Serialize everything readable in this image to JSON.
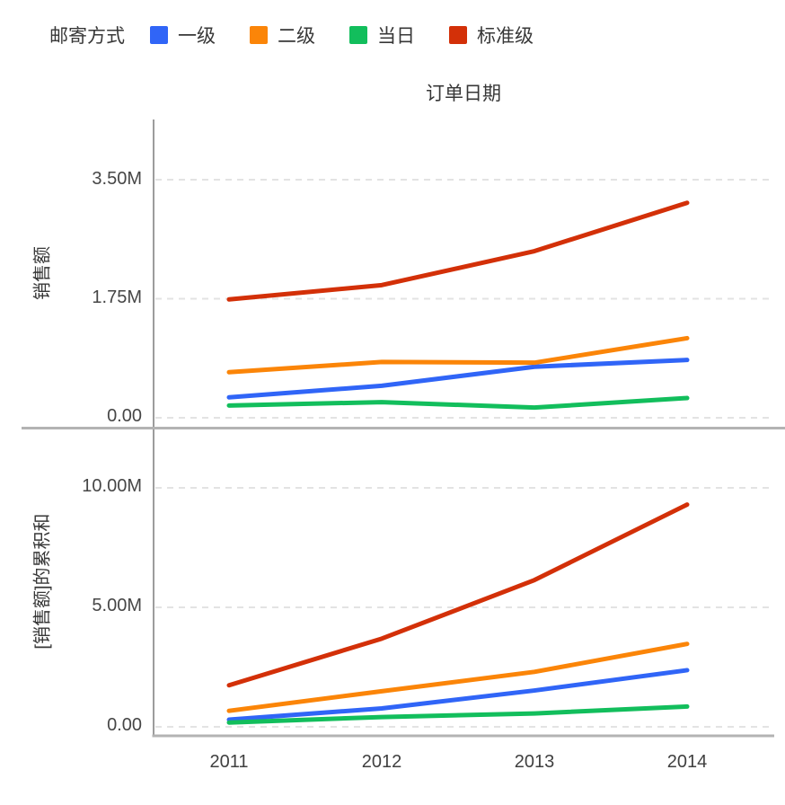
{
  "chart_data": {
    "type": "line",
    "title": "订单日期",
    "legend": {
      "title": "邮寄方式",
      "entries": [
        "一级",
        "二级",
        "当日",
        "标准级"
      ],
      "colors": [
        "#3065F7",
        "#FB8508",
        "#12BE5C",
        "#D33008"
      ]
    },
    "x_categories": [
      "2011",
      "2012",
      "2013",
      "2014"
    ],
    "panels": [
      {
        "ylabel": "销售额",
        "ytick_labels": [
          "0.00",
          "1.75M",
          "3.50M"
        ],
        "ytick_values_M": [
          0,
          1.75,
          3.5
        ],
        "ylim_M": [
          0,
          4.4
        ],
        "grid": "dashed-horizontal",
        "series": [
          {
            "name": "一级",
            "color": "#3065F7",
            "values_M": [
              0.3,
              0.47,
              0.75,
              0.85
            ]
          },
          {
            "name": "二级",
            "color": "#FB8508",
            "values_M": [
              0.67,
              0.82,
              0.81,
              1.17
            ]
          },
          {
            "name": "当日",
            "color": "#12BE5C",
            "values_M": [
              0.18,
              0.23,
              0.15,
              0.29
            ]
          },
          {
            "name": "标准级",
            "color": "#D33008",
            "values_M": [
              1.74,
              1.95,
              2.45,
              3.16
            ]
          }
        ]
      },
      {
        "ylabel": "[销售额]的累积和",
        "ytick_labels": [
          "0.00",
          "5.00M",
          "10.00M"
        ],
        "ytick_values_M": [
          0,
          5,
          10
        ],
        "ylim_M": [
          0,
          12.5
        ],
        "grid": "dashed-horizontal",
        "series": [
          {
            "name": "一级",
            "color": "#3065F7",
            "values_M": [
              0.3,
              0.77,
              1.52,
              2.37
            ]
          },
          {
            "name": "二级",
            "color": "#FB8508",
            "values_M": [
              0.67,
              1.49,
              2.3,
              3.47
            ]
          },
          {
            "name": "当日",
            "color": "#12BE5C",
            "values_M": [
              0.18,
              0.41,
              0.56,
              0.85
            ]
          },
          {
            "name": "标准级",
            "color": "#D33008",
            "values_M": [
              1.74,
              3.69,
              6.14,
              9.3
            ]
          }
        ]
      }
    ]
  }
}
